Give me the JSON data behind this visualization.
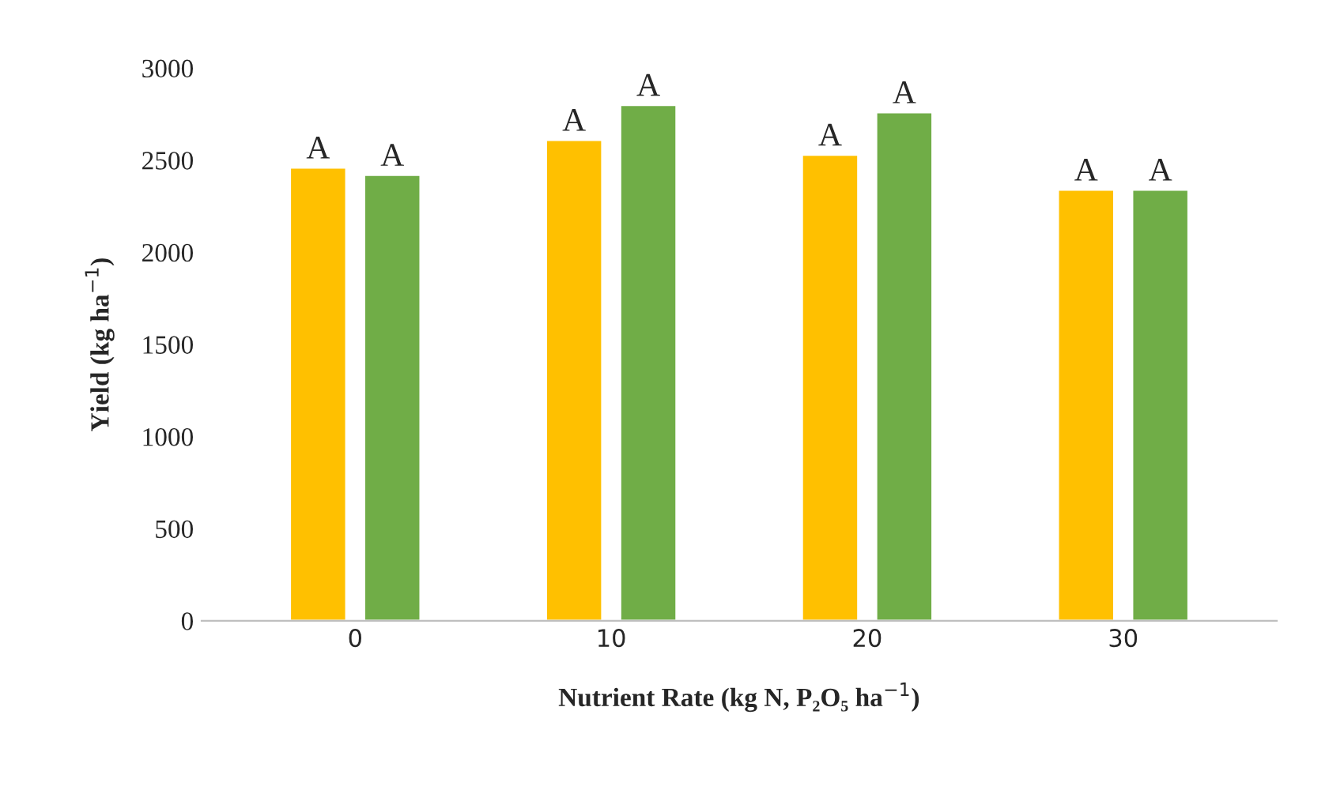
{
  "chart_data": {
    "type": "bar",
    "xlabel": "Nutrient Rate (kg N, P₂O₅ ha$^{−1}$)",
    "ylabel": "Yield (kg ha$^{−1}$)",
    "categories": [
      "0",
      "10",
      "20",
      "30"
    ],
    "series": [
      {
        "color": "#ffc000",
        "values": [
          2460,
          2610,
          2530,
          2340
        ],
        "value_labels": [
          "A",
          "A",
          "A",
          "A"
        ]
      },
      {
        "color": "#70ad47",
        "values": [
          2420,
          2800,
          2760,
          2340
        ],
        "value_labels": [
          "A",
          "A",
          "A",
          "A"
        ]
      }
    ],
    "ylim": [
      0,
      3000
    ],
    "yticks": [
      0,
      500,
      1000,
      1500,
      2000,
      2500,
      3000
    ],
    "grid": false
  }
}
